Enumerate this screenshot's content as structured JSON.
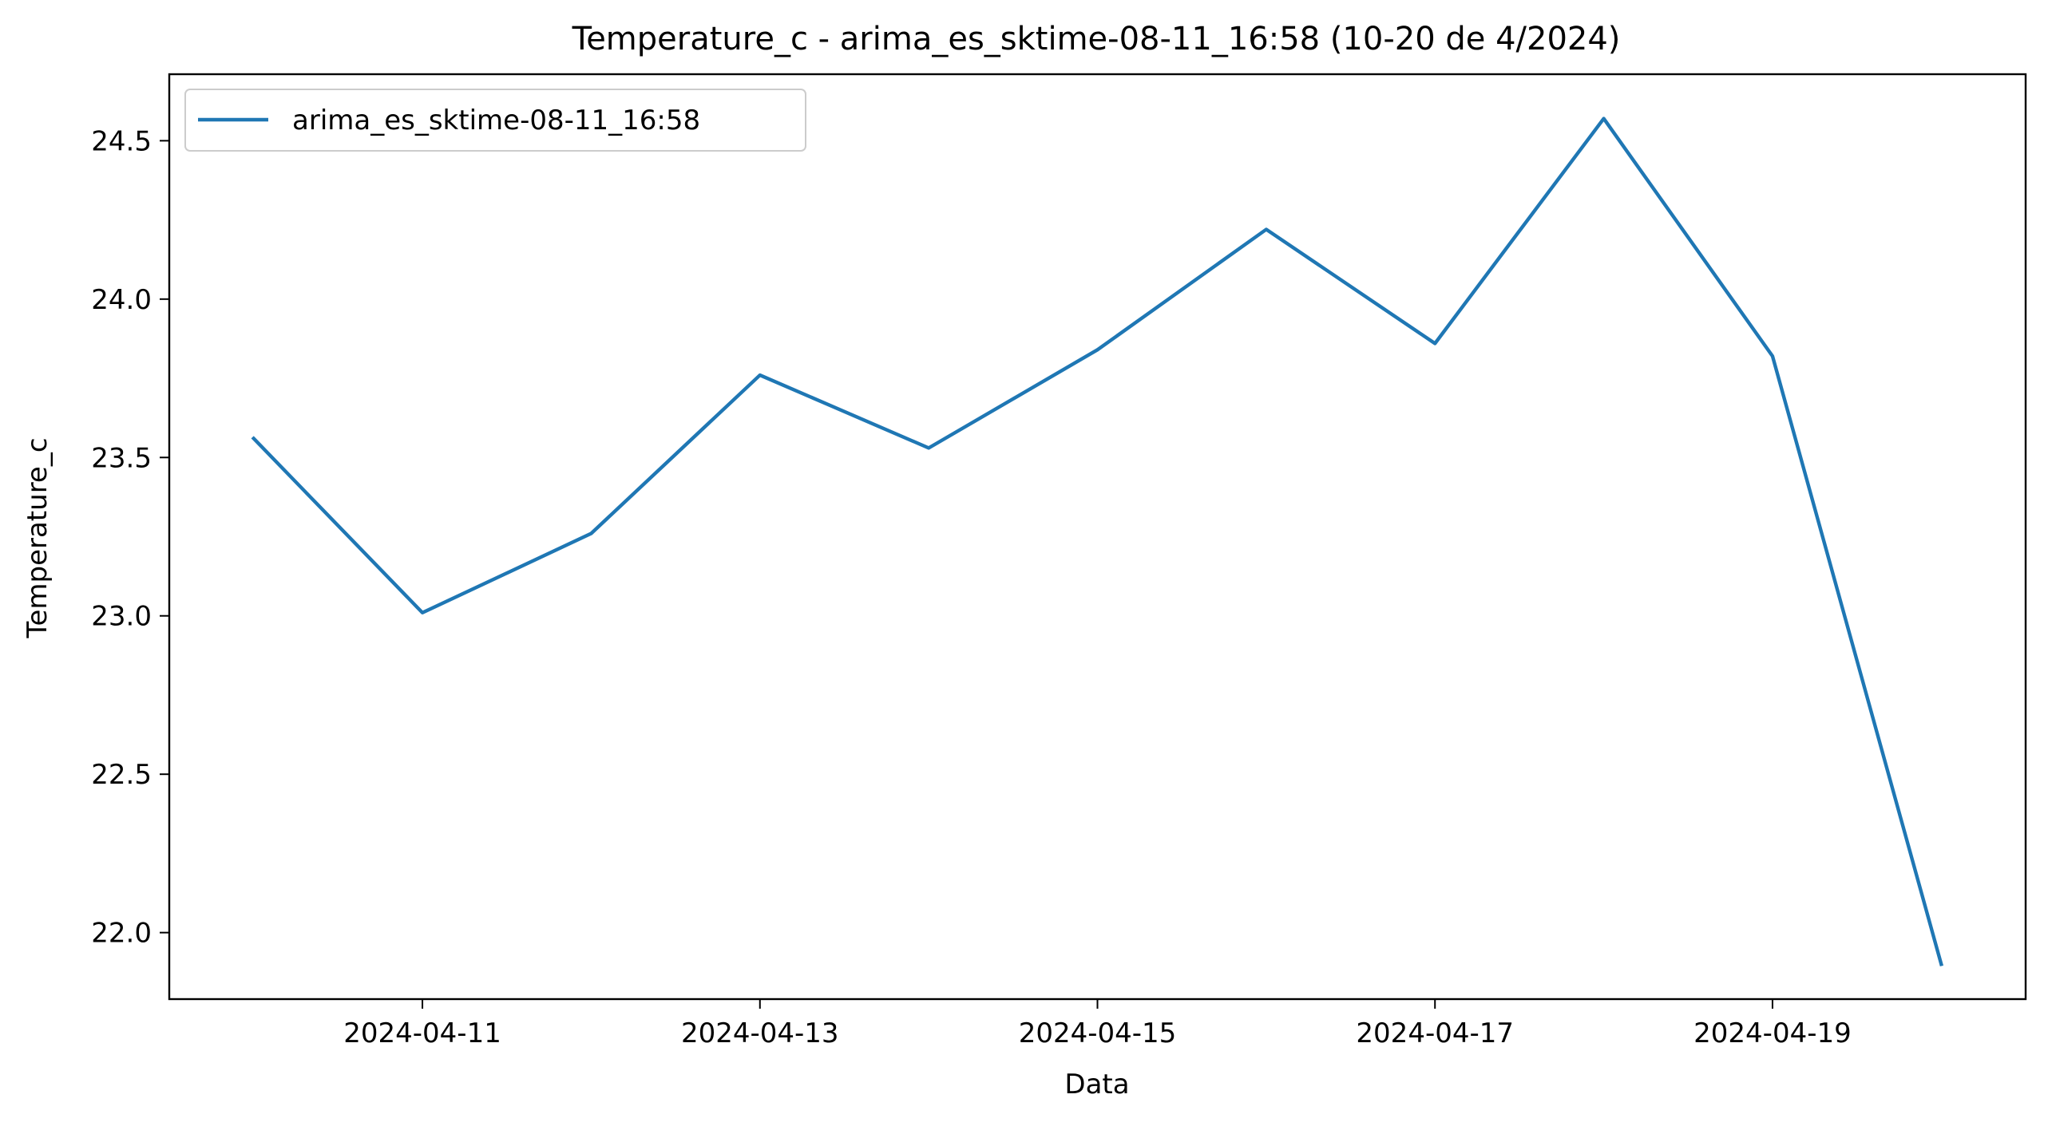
{
  "chart_data": {
    "type": "line",
    "title": "Temperature_c - arima_es_sktime-08-11_16:58 (10-20 de 4/2024)",
    "xlabel": "Data",
    "ylabel": "Temperature_c",
    "x": [
      "2024-04-10",
      "2024-04-11",
      "2024-04-12",
      "2024-04-13",
      "2024-04-14",
      "2024-04-15",
      "2024-04-16",
      "2024-04-17",
      "2024-04-18",
      "2024-04-19",
      "2024-04-20"
    ],
    "x_ticks": [
      "2024-04-11",
      "2024-04-13",
      "2024-04-15",
      "2024-04-17",
      "2024-04-19"
    ],
    "y_ticks": [
      "22.0",
      "22.5",
      "23.0",
      "23.5",
      "24.0",
      "24.5"
    ],
    "ylim": [
      21.79,
      24.71
    ],
    "xlim": [
      "2024-04-09 12:00",
      "2024-04-20 12:00"
    ],
    "grid": false,
    "legend_position": "upper-left",
    "series": [
      {
        "name": "arima_es_sktime-08-11_16:58",
        "color": "#1f77b4",
        "values": [
          23.56,
          23.01,
          23.26,
          23.76,
          23.53,
          23.84,
          24.22,
          23.86,
          24.57,
          23.82,
          21.9
        ]
      }
    ]
  }
}
